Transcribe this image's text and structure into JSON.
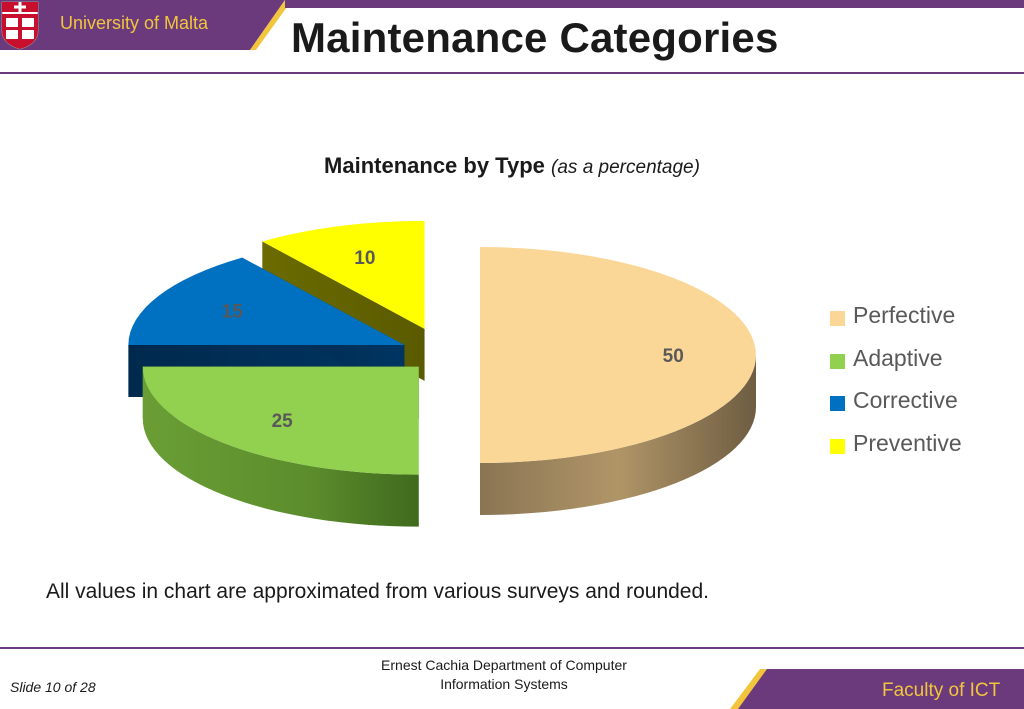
{
  "header": {
    "university": "University of Malta",
    "title": "Maintenance Categories"
  },
  "chart_data": {
    "type": "pie",
    "title": "Maintenance by Type",
    "subtitle": "(as a percentage)",
    "categories": [
      "Perfective",
      "Adaptive",
      "Corrective",
      "Preventive"
    ],
    "values": [
      50,
      25,
      15,
      10
    ],
    "data_labels": [
      "50",
      "25",
      "15",
      "10"
    ],
    "colors": [
      "#fad796",
      "#92d050",
      "#0070c0",
      "#ffff00"
    ],
    "exploded": true,
    "three_d": true,
    "legend_position": "right"
  },
  "note": "All values in chart are approximated from various surveys and rounded.",
  "footer": {
    "slide_number": "Slide 10 of 28",
    "department": "Ernest Cachia Department of Computer Information Systems",
    "faculty": "Faculty of ICT"
  },
  "colors": {
    "brand_purple": "#6b3a7c",
    "brand_gold": "#f2c53d"
  }
}
